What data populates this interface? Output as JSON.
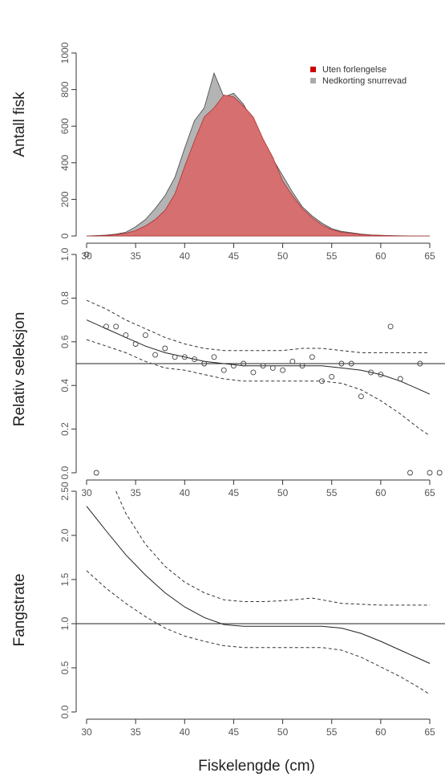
{
  "figure": {
    "xlabel": "Fiskelengde (cm)"
  },
  "colors": {
    "red_fill": "#d66f6f",
    "red_line": "#b03030",
    "grey_fill": "#b4b4b4",
    "grey_line": "#444444",
    "legend_red": "#cc0000",
    "legend_grey": "#aaaaaa"
  },
  "chart_data": [
    {
      "type": "area",
      "ylabel": "Antall fisk",
      "xlim": [
        30,
        65
      ],
      "ylim": [
        0,
        1000
      ],
      "x_ticks": [
        30,
        35,
        40,
        45,
        50,
        55,
        60,
        65
      ],
      "y_ticks": [
        0,
        200,
        400,
        600,
        800,
        1000
      ],
      "legend": "top-right",
      "x": [
        30,
        31,
        32,
        33,
        34,
        35,
        36,
        37,
        38,
        39,
        40,
        41,
        42,
        43,
        44,
        45,
        46,
        47,
        48,
        49,
        50,
        51,
        52,
        53,
        54,
        55,
        56,
        57,
        58,
        59,
        60,
        61,
        62,
        63,
        64,
        65
      ],
      "series": [
        {
          "name": "Nedkorting snurrevad",
          "color": "grey",
          "values": [
            0,
            2,
            5,
            10,
            20,
            50,
            90,
            150,
            220,
            320,
            480,
            630,
            700,
            890,
            760,
            780,
            720,
            620,
            520,
            420,
            330,
            240,
            160,
            110,
            70,
            40,
            25,
            18,
            10,
            6,
            4,
            2,
            1,
            0,
            0,
            0
          ]
        },
        {
          "name": "Uten forlengelse",
          "color": "red",
          "values": [
            0,
            1,
            3,
            8,
            15,
            30,
            55,
            90,
            140,
            230,
            380,
            520,
            650,
            700,
            770,
            760,
            710,
            650,
            530,
            430,
            300,
            220,
            150,
            100,
            60,
            35,
            20,
            15,
            8,
            5,
            3,
            1,
            0,
            0,
            0,
            0
          ]
        }
      ]
    },
    {
      "type": "scatter",
      "ylabel": "Relativ seleksjon",
      "xlim": [
        30,
        65
      ],
      "ylim": [
        0,
        1
      ],
      "x_ticks": [
        30,
        35,
        40,
        45,
        50,
        55,
        60,
        65
      ],
      "y_ticks": [
        0.0,
        0.2,
        0.4,
        0.6,
        0.8,
        1.0
      ],
      "reference_line": 0.5,
      "points": [
        [
          30,
          1.0
        ],
        [
          31,
          0.0
        ],
        [
          32,
          0.67
        ],
        [
          33,
          0.67
        ],
        [
          34,
          0.63
        ],
        [
          35,
          0.59
        ],
        [
          36,
          0.63
        ],
        [
          37,
          0.54
        ],
        [
          38,
          0.57
        ],
        [
          39,
          0.53
        ],
        [
          40,
          0.53
        ],
        [
          41,
          0.52
        ],
        [
          42,
          0.5
        ],
        [
          43,
          0.53
        ],
        [
          44,
          0.47
        ],
        [
          45,
          0.49
        ],
        [
          46,
          0.5
        ],
        [
          47,
          0.46
        ],
        [
          48,
          0.49
        ],
        [
          49,
          0.48
        ],
        [
          50,
          0.47
        ],
        [
          51,
          0.51
        ],
        [
          52,
          0.49
        ],
        [
          53,
          0.53
        ],
        [
          54,
          0.42
        ],
        [
          55,
          0.44
        ],
        [
          56,
          0.5
        ],
        [
          57,
          0.5
        ],
        [
          58,
          0.35
        ],
        [
          59,
          0.46
        ],
        [
          60,
          0.45
        ],
        [
          61,
          0.67
        ],
        [
          62,
          0.43
        ],
        [
          63,
          0.0
        ],
        [
          64,
          0.5
        ],
        [
          65,
          0.0
        ],
        [
          66,
          0.0
        ]
      ],
      "fit": {
        "x": [
          30,
          32,
          34,
          36,
          38,
          40,
          42,
          44,
          46,
          48,
          50,
          52,
          54,
          56,
          58,
          60,
          62,
          64,
          65
        ],
        "y": [
          0.7,
          0.66,
          0.62,
          0.58,
          0.55,
          0.53,
          0.51,
          0.5,
          0.49,
          0.49,
          0.49,
          0.49,
          0.49,
          0.48,
          0.47,
          0.45,
          0.42,
          0.38,
          0.36
        ]
      },
      "ci_upper": {
        "x": [
          30,
          32,
          34,
          36,
          38,
          40,
          42,
          44,
          46,
          48,
          50,
          52,
          54,
          56,
          58,
          60,
          62,
          64,
          65
        ],
        "y": [
          0.79,
          0.75,
          0.7,
          0.66,
          0.62,
          0.59,
          0.57,
          0.56,
          0.56,
          0.56,
          0.56,
          0.57,
          0.57,
          0.56,
          0.55,
          0.55,
          0.55,
          0.55,
          0.55
        ]
      },
      "ci_lower": {
        "x": [
          30,
          32,
          34,
          36,
          38,
          40,
          42,
          44,
          46,
          48,
          50,
          52,
          54,
          56,
          58,
          60,
          62,
          64,
          65
        ],
        "y": [
          0.61,
          0.58,
          0.55,
          0.51,
          0.48,
          0.47,
          0.45,
          0.43,
          0.42,
          0.42,
          0.42,
          0.42,
          0.42,
          0.41,
          0.38,
          0.33,
          0.27,
          0.2,
          0.17
        ]
      }
    },
    {
      "type": "line",
      "ylabel": "Fangstrate",
      "xlim": [
        30,
        65
      ],
      "ylim": [
        0,
        2.5
      ],
      "x_ticks": [
        30,
        35,
        40,
        45,
        50,
        55,
        60,
        65
      ],
      "y_ticks": [
        0.0,
        0.5,
        1.0,
        1.5,
        2.0,
        2.5
      ],
      "y_tick_labels": [
        "0.0",
        "0.5",
        "1.0",
        "1.5",
        "2.0",
        "2.50"
      ],
      "reference_line": 1.0,
      "fit": {
        "x": [
          30,
          32,
          34,
          36,
          38,
          40,
          42,
          44,
          46,
          48,
          50,
          52,
          54,
          56,
          58,
          60,
          62,
          64,
          65
        ],
        "y": [
          2.33,
          2.05,
          1.78,
          1.55,
          1.35,
          1.19,
          1.07,
          0.99,
          0.97,
          0.97,
          0.97,
          0.97,
          0.97,
          0.95,
          0.89,
          0.8,
          0.7,
          0.6,
          0.55
        ]
      },
      "ci_upper": {
        "x": [
          33,
          34,
          36,
          38,
          40,
          42,
          44,
          46,
          48,
          50,
          52,
          53,
          54,
          56,
          58,
          60,
          62,
          64,
          65
        ],
        "y": [
          2.5,
          2.25,
          1.9,
          1.65,
          1.47,
          1.35,
          1.27,
          1.25,
          1.25,
          1.26,
          1.28,
          1.29,
          1.27,
          1.23,
          1.22,
          1.21,
          1.21,
          1.21,
          1.21
        ]
      },
      "ci_lower": {
        "x": [
          30,
          32,
          34,
          36,
          38,
          40,
          42,
          44,
          46,
          48,
          50,
          52,
          54,
          56,
          58,
          60,
          62,
          64,
          65
        ],
        "y": [
          1.6,
          1.4,
          1.23,
          1.08,
          0.95,
          0.86,
          0.8,
          0.75,
          0.73,
          0.73,
          0.73,
          0.73,
          0.73,
          0.7,
          0.62,
          0.51,
          0.4,
          0.27,
          0.2
        ]
      }
    }
  ]
}
